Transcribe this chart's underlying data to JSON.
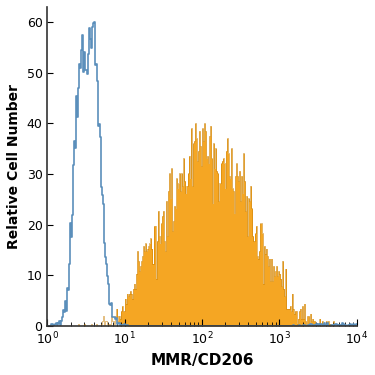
{
  "title": "",
  "xlabel": "MMR/CD206",
  "ylabel": "Relative Cell Number",
  "xlim_log": [
    1,
    10000
  ],
  "ylim": [
    0,
    63
  ],
  "yticks": [
    0,
    10,
    20,
    30,
    40,
    50,
    60
  ],
  "blue_color": "#5b8fbb",
  "orange_color": "#f5a623",
  "orange_edge_color": "#c97e00",
  "bg_color": "#ffffff",
  "blue_peak_height": 60,
  "orange_peak_height": 40,
  "n_bins": 300
}
